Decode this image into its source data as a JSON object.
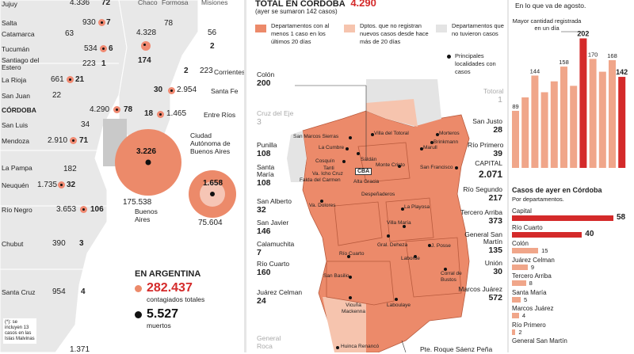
{
  "argentina": {
    "provinces": [
      {
        "name": "Jujuy",
        "cases": "4.336",
        "deaths": "72"
      },
      {
        "name": "Salta",
        "cases": "930",
        "deaths": "7"
      },
      {
        "name": "Catamarca",
        "cases": "63",
        "deaths": ""
      },
      {
        "name": "Tucumán",
        "cases": "534",
        "deaths": "6"
      },
      {
        "name": "Santiago del Estero",
        "cases": "223",
        "deaths": "1"
      },
      {
        "name": "La Rioja",
        "cases": "661",
        "deaths": "21"
      },
      {
        "name": "San Juan",
        "cases": "22",
        "deaths": ""
      },
      {
        "name": "CÓRDOBA",
        "cases": "4.290",
        "deaths": "78"
      },
      {
        "name": "San Luis",
        "cases": "34",
        "deaths": ""
      },
      {
        "name": "Mendoza",
        "cases": "2.910",
        "deaths": "71"
      },
      {
        "name": "La Pampa",
        "cases": "182",
        "deaths": ""
      },
      {
        "name": "Neuquén",
        "cases": "1.735",
        "deaths": "32"
      },
      {
        "name": "Río Negro",
        "cases": "3.653",
        "deaths": "106"
      },
      {
        "name": "Chubut",
        "cases": "390",
        "deaths": "3"
      },
      {
        "name": "Santa Cruz",
        "cases": "954",
        "deaths": "4"
      },
      {
        "name": "Chaco",
        "cases": "4.328",
        "deaths": "174"
      },
      {
        "name": "Formosa",
        "cases": "78",
        "deaths": ""
      },
      {
        "name": "Misiones",
        "cases": "56",
        "deaths": "2"
      },
      {
        "name": "Corrientes",
        "cases": "223",
        "deaths": "2"
      },
      {
        "name": "Santa Fe",
        "cases": "2.954",
        "deaths": "30"
      },
      {
        "name": "Entre Ríos",
        "cases": "1.465",
        "deaths": "18"
      },
      {
        "name": "Ciudad Autónoma de Buenos Aires",
        "cases": "75.604",
        "deaths": "1.658"
      },
      {
        "name": "Buenos Aires",
        "cases": "175.538",
        "deaths": "3.226"
      }
    ],
    "total": {
      "heading": "EN ARGENTINA",
      "cases": "282.437",
      "cases_label": "contagiados totales",
      "deaths": "5.527",
      "deaths_label": "muertos"
    },
    "footnote": "(*): se incluyen 13 casos en las Islas Malvinas",
    "bottom_partial": "1.371"
  },
  "cordoba": {
    "title_prefix": "TOTAL EN CÓRDOBA",
    "title_value": "4.290",
    "subtitle": "(ayer se sumaron 142 casos)",
    "legend": [
      {
        "label": "Departamentos con al menos 1 caso en los últimos 20 días",
        "color": "#ec8a6a"
      },
      {
        "label": "Dptos. que no registran nuevos casos desde hace más de 20 días",
        "color": "#f6c4ae"
      },
      {
        "label": "Departamentos que no tuvieron casos",
        "color": "#e4e4e4"
      },
      {
        "label": "Principales localidades con casos",
        "color": "#111111"
      }
    ],
    "departments": [
      {
        "name": "Colón",
        "value": "200",
        "muted": false
      },
      {
        "name": "Cruz del Eje",
        "value": "3",
        "muted": true
      },
      {
        "name": "Punilla",
        "value": "108",
        "muted": false
      },
      {
        "name": "Santa María",
        "value": "108",
        "muted": false
      },
      {
        "name": "San Alberto",
        "value": "32",
        "muted": false
      },
      {
        "name": "San Javier",
        "value": "146",
        "muted": false
      },
      {
        "name": "Calamuchita",
        "value": "7",
        "muted": false
      },
      {
        "name": "Río Cuarto",
        "value": "160",
        "muted": false
      },
      {
        "name": "Juárez Celman",
        "value": "24",
        "muted": false
      },
      {
        "name": "General Roca",
        "value": "",
        "muted": true
      },
      {
        "name": "Totoral",
        "value": "1",
        "muted": true
      },
      {
        "name": "San Justo",
        "value": "28",
        "muted": false
      },
      {
        "name": "Río Primero",
        "value": "39",
        "muted": false
      },
      {
        "name": "CAPITAL",
        "value": "2.071",
        "muted": false
      },
      {
        "name": "Río Segundo",
        "value": "217",
        "muted": false
      },
      {
        "name": "Tercero Arriba",
        "value": "373",
        "muted": false
      },
      {
        "name": "General San Martín",
        "value": "135",
        "muted": false
      },
      {
        "name": "Unión",
        "value": "30",
        "muted": false
      },
      {
        "name": "Marcos Juárez",
        "value": "572",
        "muted": false
      },
      {
        "name": "Pte. Roque Sáenz Peña",
        "value": "",
        "muted": false
      }
    ],
    "towns": [
      "San Marcos Sierras",
      "Villa del Totoral",
      "La Cumbre",
      "Saldán",
      "Cosquín",
      "Tanti",
      "Va. Icho Cruz",
      "Falda del Carmen",
      "CBA",
      "Alta Gracia",
      "Monte Cristo",
      "Despeñaderos",
      "Morteros",
      "Brinkmann",
      "Marull",
      "San Francisco",
      "Va. Dolores",
      "La Playosa",
      "Villa María",
      "Gral. Deheza",
      "J. Posse",
      "Laborde",
      "Corral de Bustos",
      "Río Cuarto",
      "San Basilio",
      "Vicuña Mackenna",
      "Laboulaye",
      "Huinca Renancó"
    ]
  },
  "daily": {
    "header_note": "En lo que va de agosto.",
    "max_label": "Mayor cantidad registrada en un día",
    "chart_data": {
      "type": "bar",
      "values": [
        89,
        144,
        158,
        202,
        170,
        168,
        142
      ],
      "all_bars": [
        89,
        110,
        144,
        118,
        135,
        158,
        128,
        202,
        170,
        150,
        168,
        142
      ],
      "ylim": [
        0,
        210
      ]
    },
    "by_dept_title": "Casos de ayer en Córdoba",
    "by_dept_subtitle": "Por departamentos.",
    "by_dept": [
      {
        "name": "Capital",
        "value": 58
      },
      {
        "name": "Río Cuarto",
        "value": 40
      },
      {
        "name": "Colón",
        "value": 15
      },
      {
        "name": "Juárez Celman",
        "value": 9
      },
      {
        "name": "Tercero Arriba",
        "value": 8
      },
      {
        "name": "Santa María",
        "value": 5
      },
      {
        "name": "Marcos Juárez",
        "value": 4
      },
      {
        "name": "Río Primero",
        "value": 2
      },
      {
        "name": "General San Martín",
        "value": ""
      }
    ]
  }
}
